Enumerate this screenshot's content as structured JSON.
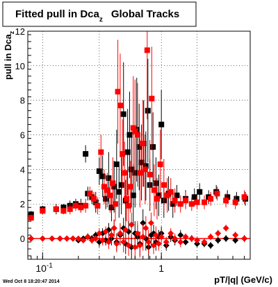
{
  "chart_data": {
    "type": "scatter",
    "title": {
      "main": "Fitted pull in Dca",
      "sub": "z",
      "suffix": "Global Tracks"
    },
    "xlabel": "pT/|q| (GeV/c)",
    "ylabel": {
      "main": "pull in Dca",
      "sub": "z"
    },
    "x_scale": "log",
    "xlim": [
      0.075,
      5.6
    ],
    "ylim": [
      -1.2,
      12.0
    ],
    "x_tick_labels": [
      "10",
      "-1",
      "1"
    ],
    "y_tick_labels": [
      "0",
      "2",
      "4",
      "6",
      "8",
      "10",
      "12"
    ],
    "grid": true,
    "legend": "none",
    "timestamp": "Wed Oct  8 18:20:47 2014",
    "colors": {
      "series_black": "#000000",
      "series_red": "#ff0000"
    },
    "series": [
      {
        "marker": "square",
        "color": "#000000",
        "role": "sigma",
        "points": [
          [
            0.08,
            1.4,
            0.2
          ],
          [
            0.1,
            1.7,
            0.2
          ],
          [
            0.13,
            1.7,
            0.3
          ],
          [
            0.15,
            1.8,
            0.2
          ],
          [
            0.17,
            1.9,
            0.3
          ],
          [
            0.19,
            2.0,
            0.3
          ],
          [
            0.21,
            1.9,
            0.4
          ],
          [
            0.23,
            4.9,
            0.5
          ],
          [
            0.24,
            2.6,
            0.4
          ],
          [
            0.26,
            2.4,
            0.4
          ],
          [
            0.28,
            2.1,
            0.6
          ],
          [
            0.3,
            3.9,
            0.8
          ],
          [
            0.32,
            3.6,
            1.2
          ],
          [
            0.34,
            2.3,
            0.6
          ],
          [
            0.36,
            3.5,
            1.5
          ],
          [
            0.38,
            1.8,
            0.8
          ],
          [
            0.4,
            3.0,
            1.5
          ],
          [
            0.42,
            4.3,
            2.0
          ],
          [
            0.44,
            2.7,
            1.5
          ],
          [
            0.46,
            3.1,
            1.7
          ],
          [
            0.48,
            7.2,
            3.0
          ],
          [
            0.5,
            2.2,
            1.2
          ],
          [
            0.52,
            5.0,
            2.5
          ],
          [
            0.54,
            6.0,
            2.5
          ],
          [
            0.56,
            4.0,
            2.2
          ],
          [
            0.58,
            2.5,
            1.8
          ],
          [
            0.6,
            3.8,
            2.0
          ],
          [
            0.62,
            6.3,
            3.0
          ],
          [
            0.65,
            5.3,
            2.5
          ],
          [
            0.68,
            4.4,
            2.2
          ],
          [
            0.71,
            5.5,
            2.5
          ],
          [
            0.74,
            4.2,
            2.0
          ],
          [
            0.77,
            7.4,
            3.0
          ],
          [
            0.8,
            3.1,
            1.5
          ],
          [
            0.85,
            5.3,
            2.0
          ],
          [
            0.9,
            3.2,
            1.5
          ],
          [
            0.95,
            2.5,
            1.2
          ],
          [
            1.0,
            6.6,
            2.0
          ],
          [
            1.05,
            2.2,
            1.0
          ],
          [
            1.15,
            2.6,
            1.0
          ],
          [
            1.25,
            2.0,
            0.8
          ],
          [
            1.35,
            2.5,
            0.6
          ],
          [
            1.6,
            2.3,
            0.5
          ],
          [
            1.9,
            2.4,
            0.5
          ],
          [
            2.1,
            2.7,
            0.5
          ],
          [
            2.5,
            2.4,
            0.4
          ],
          [
            2.9,
            2.7,
            0.4
          ],
          [
            3.6,
            2.4,
            0.4
          ],
          [
            4.3,
            2.3,
            0.4
          ],
          [
            5.1,
            2.3,
            0.4
          ]
        ]
      },
      {
        "marker": "square",
        "color": "#ff0000",
        "role": "sigma",
        "points": [
          [
            0.08,
            1.2,
            0.2
          ],
          [
            0.1,
            1.6,
            0.2
          ],
          [
            0.13,
            1.7,
            0.2
          ],
          [
            0.15,
            1.6,
            0.2
          ],
          [
            0.17,
            1.7,
            0.3
          ],
          [
            0.19,
            1.9,
            0.3
          ],
          [
            0.21,
            1.8,
            0.3
          ],
          [
            0.23,
            1.9,
            0.4
          ],
          [
            0.25,
            2.6,
            0.4
          ],
          [
            0.27,
            2.3,
            0.4
          ],
          [
            0.29,
            1.9,
            0.5
          ],
          [
            0.31,
            5.0,
            1.0
          ],
          [
            0.33,
            3.0,
            1.0
          ],
          [
            0.35,
            2.8,
            1.0
          ],
          [
            0.37,
            2.5,
            1.0
          ],
          [
            0.39,
            3.2,
            1.5
          ],
          [
            0.41,
            2.0,
            1.0
          ],
          [
            0.43,
            8.5,
            3.0
          ],
          [
            0.45,
            7.7,
            3.0
          ],
          [
            0.47,
            4.9,
            2.0
          ],
          [
            0.49,
            3.8,
            1.8
          ],
          [
            0.51,
            2.3,
            1.3
          ],
          [
            0.53,
            1.9,
            1.2
          ],
          [
            0.55,
            3.0,
            1.5
          ],
          [
            0.58,
            6.4,
            3.0
          ],
          [
            0.6,
            6.2,
            3.0
          ],
          [
            0.63,
            6.0,
            3.0
          ],
          [
            0.66,
            3.8,
            2.0
          ],
          [
            0.7,
            5.5,
            2.5
          ],
          [
            0.73,
            4.0,
            2.0
          ],
          [
            0.76,
            10.9,
            4.0
          ],
          [
            0.8,
            3.7,
            2.0
          ],
          [
            0.83,
            8.1,
            3.0
          ],
          [
            0.87,
            2.8,
            1.5
          ],
          [
            0.92,
            2.3,
            1.2
          ],
          [
            0.98,
            4.3,
            2.0
          ],
          [
            1.05,
            3.1,
            1.5
          ],
          [
            1.12,
            2.5,
            1.0
          ],
          [
            1.2,
            2.7,
            0.8
          ],
          [
            1.3,
            2.2,
            0.7
          ],
          [
            1.45,
            2.0,
            0.5
          ],
          [
            1.6,
            2.2,
            0.5
          ],
          [
            1.8,
            2.0,
            0.4
          ],
          [
            2.0,
            2.1,
            0.4
          ],
          [
            2.3,
            2.1,
            0.4
          ],
          [
            2.6,
            2.3,
            0.4
          ],
          [
            2.95,
            2.6,
            0.4
          ],
          [
            3.5,
            2.2,
            0.4
          ],
          [
            4.2,
            2.1,
            0.4
          ],
          [
            5.0,
            2.4,
            0.4
          ]
        ]
      },
      {
        "marker": "diamond",
        "color": "#000000",
        "role": "mean",
        "points": [
          [
            0.08,
            0.0,
            0.1
          ],
          [
            0.1,
            0.0,
            0.1
          ],
          [
            0.12,
            0.0,
            0.1
          ],
          [
            0.14,
            0.0,
            0.1
          ],
          [
            0.16,
            0.0,
            0.1
          ],
          [
            0.18,
            0.0,
            0.1
          ],
          [
            0.2,
            -0.1,
            0.1
          ],
          [
            0.22,
            0.0,
            0.1
          ],
          [
            0.24,
            0.1,
            0.2
          ],
          [
            0.26,
            0.0,
            0.2
          ],
          [
            0.28,
            0.2,
            0.2
          ],
          [
            0.3,
            -0.2,
            0.3
          ],
          [
            0.32,
            0.3,
            0.3
          ],
          [
            0.34,
            -0.1,
            0.3
          ],
          [
            0.36,
            0.5,
            0.4
          ],
          [
            0.38,
            0.0,
            0.4
          ],
          [
            0.4,
            0.6,
            0.5
          ],
          [
            0.42,
            -0.2,
            0.5
          ],
          [
            0.45,
            0.2,
            0.6
          ],
          [
            0.48,
            0.6,
            0.6
          ],
          [
            0.5,
            -0.3,
            0.6
          ],
          [
            0.53,
            0.4,
            0.6
          ],
          [
            0.56,
            -0.5,
            0.7
          ],
          [
            0.6,
            0.3,
            0.7
          ],
          [
            0.63,
            0.1,
            0.7
          ],
          [
            0.66,
            -0.3,
            0.7
          ],
          [
            0.7,
            0.9,
            0.8
          ],
          [
            0.74,
            0.0,
            0.7
          ],
          [
            0.78,
            -0.5,
            0.7
          ],
          [
            0.82,
            0.2,
            0.6
          ],
          [
            0.86,
            0.3,
            0.5
          ],
          [
            0.9,
            -0.2,
            0.5
          ],
          [
            0.95,
            0.1,
            0.4
          ],
          [
            1.0,
            0.3,
            0.4
          ],
          [
            1.1,
            -0.4,
            0.3
          ],
          [
            1.2,
            0.1,
            0.3
          ],
          [
            1.3,
            -0.1,
            0.3
          ],
          [
            1.45,
            0.2,
            0.3
          ],
          [
            1.6,
            -0.2,
            0.2
          ],
          [
            1.8,
            0.0,
            0.2
          ],
          [
            2.0,
            -0.3,
            0.2
          ],
          [
            2.3,
            -0.3,
            0.2
          ],
          [
            2.6,
            -0.4,
            0.2
          ],
          [
            3.0,
            -0.1,
            0.2
          ],
          [
            3.5,
            0.0,
            0.2
          ],
          [
            4.2,
            -0.1,
            0.2
          ],
          [
            5.0,
            0.0,
            0.2
          ]
        ]
      },
      {
        "marker": "diamond",
        "color": "#ff0000",
        "role": "mean",
        "points": [
          [
            0.08,
            0.0,
            0.1
          ],
          [
            0.1,
            0.0,
            0.1
          ],
          [
            0.12,
            0.0,
            0.1
          ],
          [
            0.14,
            0.0,
            0.1
          ],
          [
            0.16,
            0.0,
            0.1
          ],
          [
            0.18,
            0.0,
            0.1
          ],
          [
            0.2,
            0.0,
            0.1
          ],
          [
            0.22,
            -0.1,
            0.1
          ],
          [
            0.24,
            0.1,
            0.2
          ],
          [
            0.26,
            -0.1,
            0.2
          ],
          [
            0.28,
            0.0,
            0.2
          ],
          [
            0.3,
            0.3,
            0.3
          ],
          [
            0.32,
            -0.1,
            0.3
          ],
          [
            0.34,
            0.4,
            0.3
          ],
          [
            0.36,
            -0.2,
            0.4
          ],
          [
            0.38,
            0.2,
            0.4
          ],
          [
            0.4,
            0.6,
            0.5
          ],
          [
            0.42,
            -0.3,
            0.5
          ],
          [
            0.45,
            0.3,
            0.6
          ],
          [
            0.48,
            -0.2,
            0.6
          ],
          [
            0.5,
            0.5,
            0.6
          ],
          [
            0.53,
            -0.4,
            0.6
          ],
          [
            0.56,
            0.8,
            0.7
          ],
          [
            0.6,
            -0.5,
            0.7
          ],
          [
            0.63,
            0.3,
            0.7
          ],
          [
            0.66,
            -0.4,
            0.7
          ],
          [
            0.7,
            0.1,
            0.8
          ],
          [
            0.74,
            0.6,
            0.7
          ],
          [
            0.78,
            -0.2,
            0.7
          ],
          [
            0.82,
            0.9,
            0.6
          ],
          [
            0.86,
            -0.4,
            0.5
          ],
          [
            0.9,
            0.2,
            0.5
          ],
          [
            0.95,
            -0.3,
            0.4
          ],
          [
            1.0,
            0.1,
            0.4
          ],
          [
            1.1,
            -0.2,
            0.3
          ],
          [
            1.2,
            0.3,
            0.3
          ],
          [
            1.3,
            0.0,
            0.3
          ],
          [
            1.45,
            -0.2,
            0.3
          ],
          [
            1.6,
            0.1,
            0.2
          ],
          [
            1.8,
            0.0,
            0.2
          ],
          [
            2.0,
            -0.1,
            0.2
          ],
          [
            2.3,
            -0.2,
            0.2
          ],
          [
            2.6,
            0.1,
            0.2
          ],
          [
            3.0,
            0.3,
            0.2
          ],
          [
            3.5,
            0.6,
            0.2
          ],
          [
            4.2,
            0.2,
            0.2
          ],
          [
            5.0,
            0.0,
            0.2
          ]
        ]
      }
    ]
  }
}
